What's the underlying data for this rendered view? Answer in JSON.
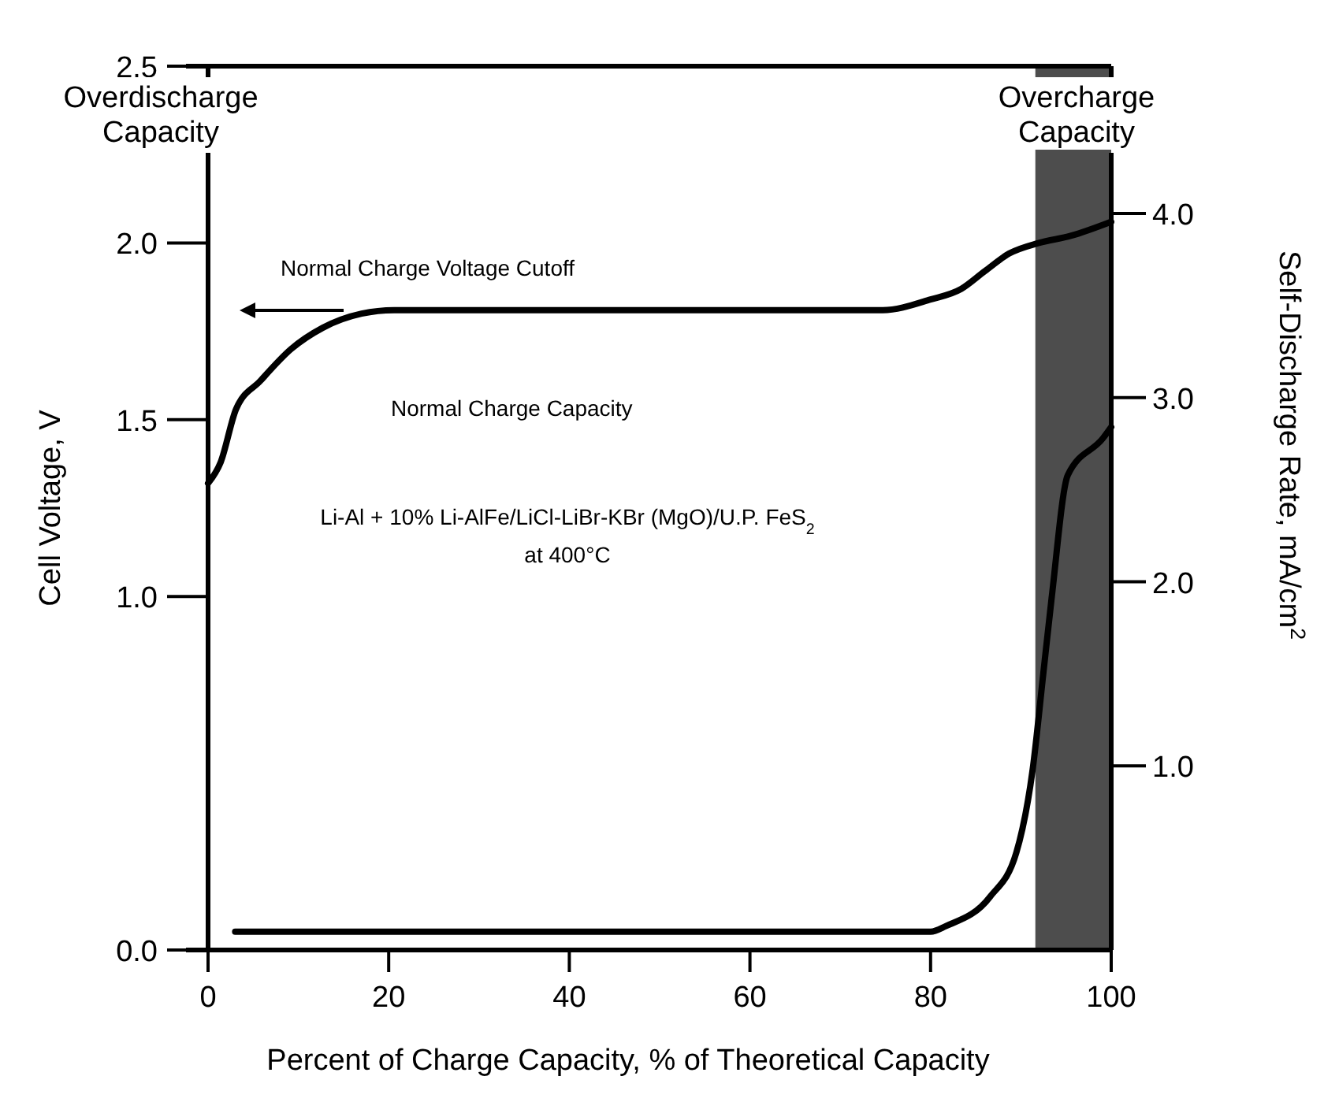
{
  "chart_data": {
    "type": "line",
    "xlabel": "Percent of Charge Capacity, % of Theoretical Capacity",
    "ylabel": "Cell Voltage, V",
    "y2label": "Self-Discharge Rate, mA/cm$^{2}$",
    "xlim": [
      0,
      100
    ],
    "xticks": [
      0,
      20,
      40,
      60,
      80,
      100
    ],
    "ylim": [
      0,
      2.5
    ],
    "yticks": [
      {
        "value": 0,
        "label": "0.0"
      },
      {
        "value": 1.0,
        "label": "1.0"
      },
      1.5,
      {
        "value": 2.0,
        "label": "2.0"
      },
      2.5
    ],
    "y2lim": [
      0,
      4.8
    ],
    "y2ticks": [
      {
        "value": 1.0,
        "label": "1.0"
      },
      {
        "value": 2.0,
        "label": "2.0"
      },
      {
        "value": 3.0,
        "label": "3.0"
      },
      {
        "value": 4.0,
        "label": "4.0"
      }
    ],
    "grid": false,
    "marker": "none",
    "line_style": "solid",
    "series": [
      {
        "color": "#000000",
        "axis": "y",
        "x": [
          0,
          1.4,
          3.1,
          5.8,
          9.2,
          12.7,
          17,
          20.6,
          40,
          60,
          74.7,
          80,
          83.4,
          86,
          88.7,
          92,
          95.5,
          100
        ],
        "values": [
          1.32,
          1.38,
          1.53,
          1.61,
          1.7,
          1.76,
          1.8,
          1.81,
          1.81,
          1.81,
          1.81,
          1.84,
          1.87,
          1.92,
          1.97,
          2.0,
          2.02,
          2.06
        ]
      },
      {
        "color": "#000000",
        "axis": "y2",
        "x": [
          3,
          20,
          40,
          60,
          80,
          81.7,
          86.6,
          89.5,
          91.3,
          92.5,
          93.4,
          95.2,
          99.1,
          100
        ],
        "values": [
          0.1,
          0.1,
          0.1,
          0.1,
          0.1,
          0.13,
          0.29,
          0.53,
          0.98,
          1.51,
          1.91,
          2.58,
          2.78,
          2.84
        ]
      }
    ],
    "bands": [
      {
        "axis": "x",
        "from": 91.6,
        "to": 100,
        "color": "#4d4d4d"
      }
    ],
    "annotations": [
      "Overdischarge Capacity",
      "Overcharge Capacity",
      "Normal Charge Voltage Cutoff",
      "Normal Charge Capacity",
      "Li-Al + 10% Li-AlFe/LiCl-LiBr-KBr (MgO)/U.P. FeS$_{2}$ at 400°C"
    ]
  }
}
